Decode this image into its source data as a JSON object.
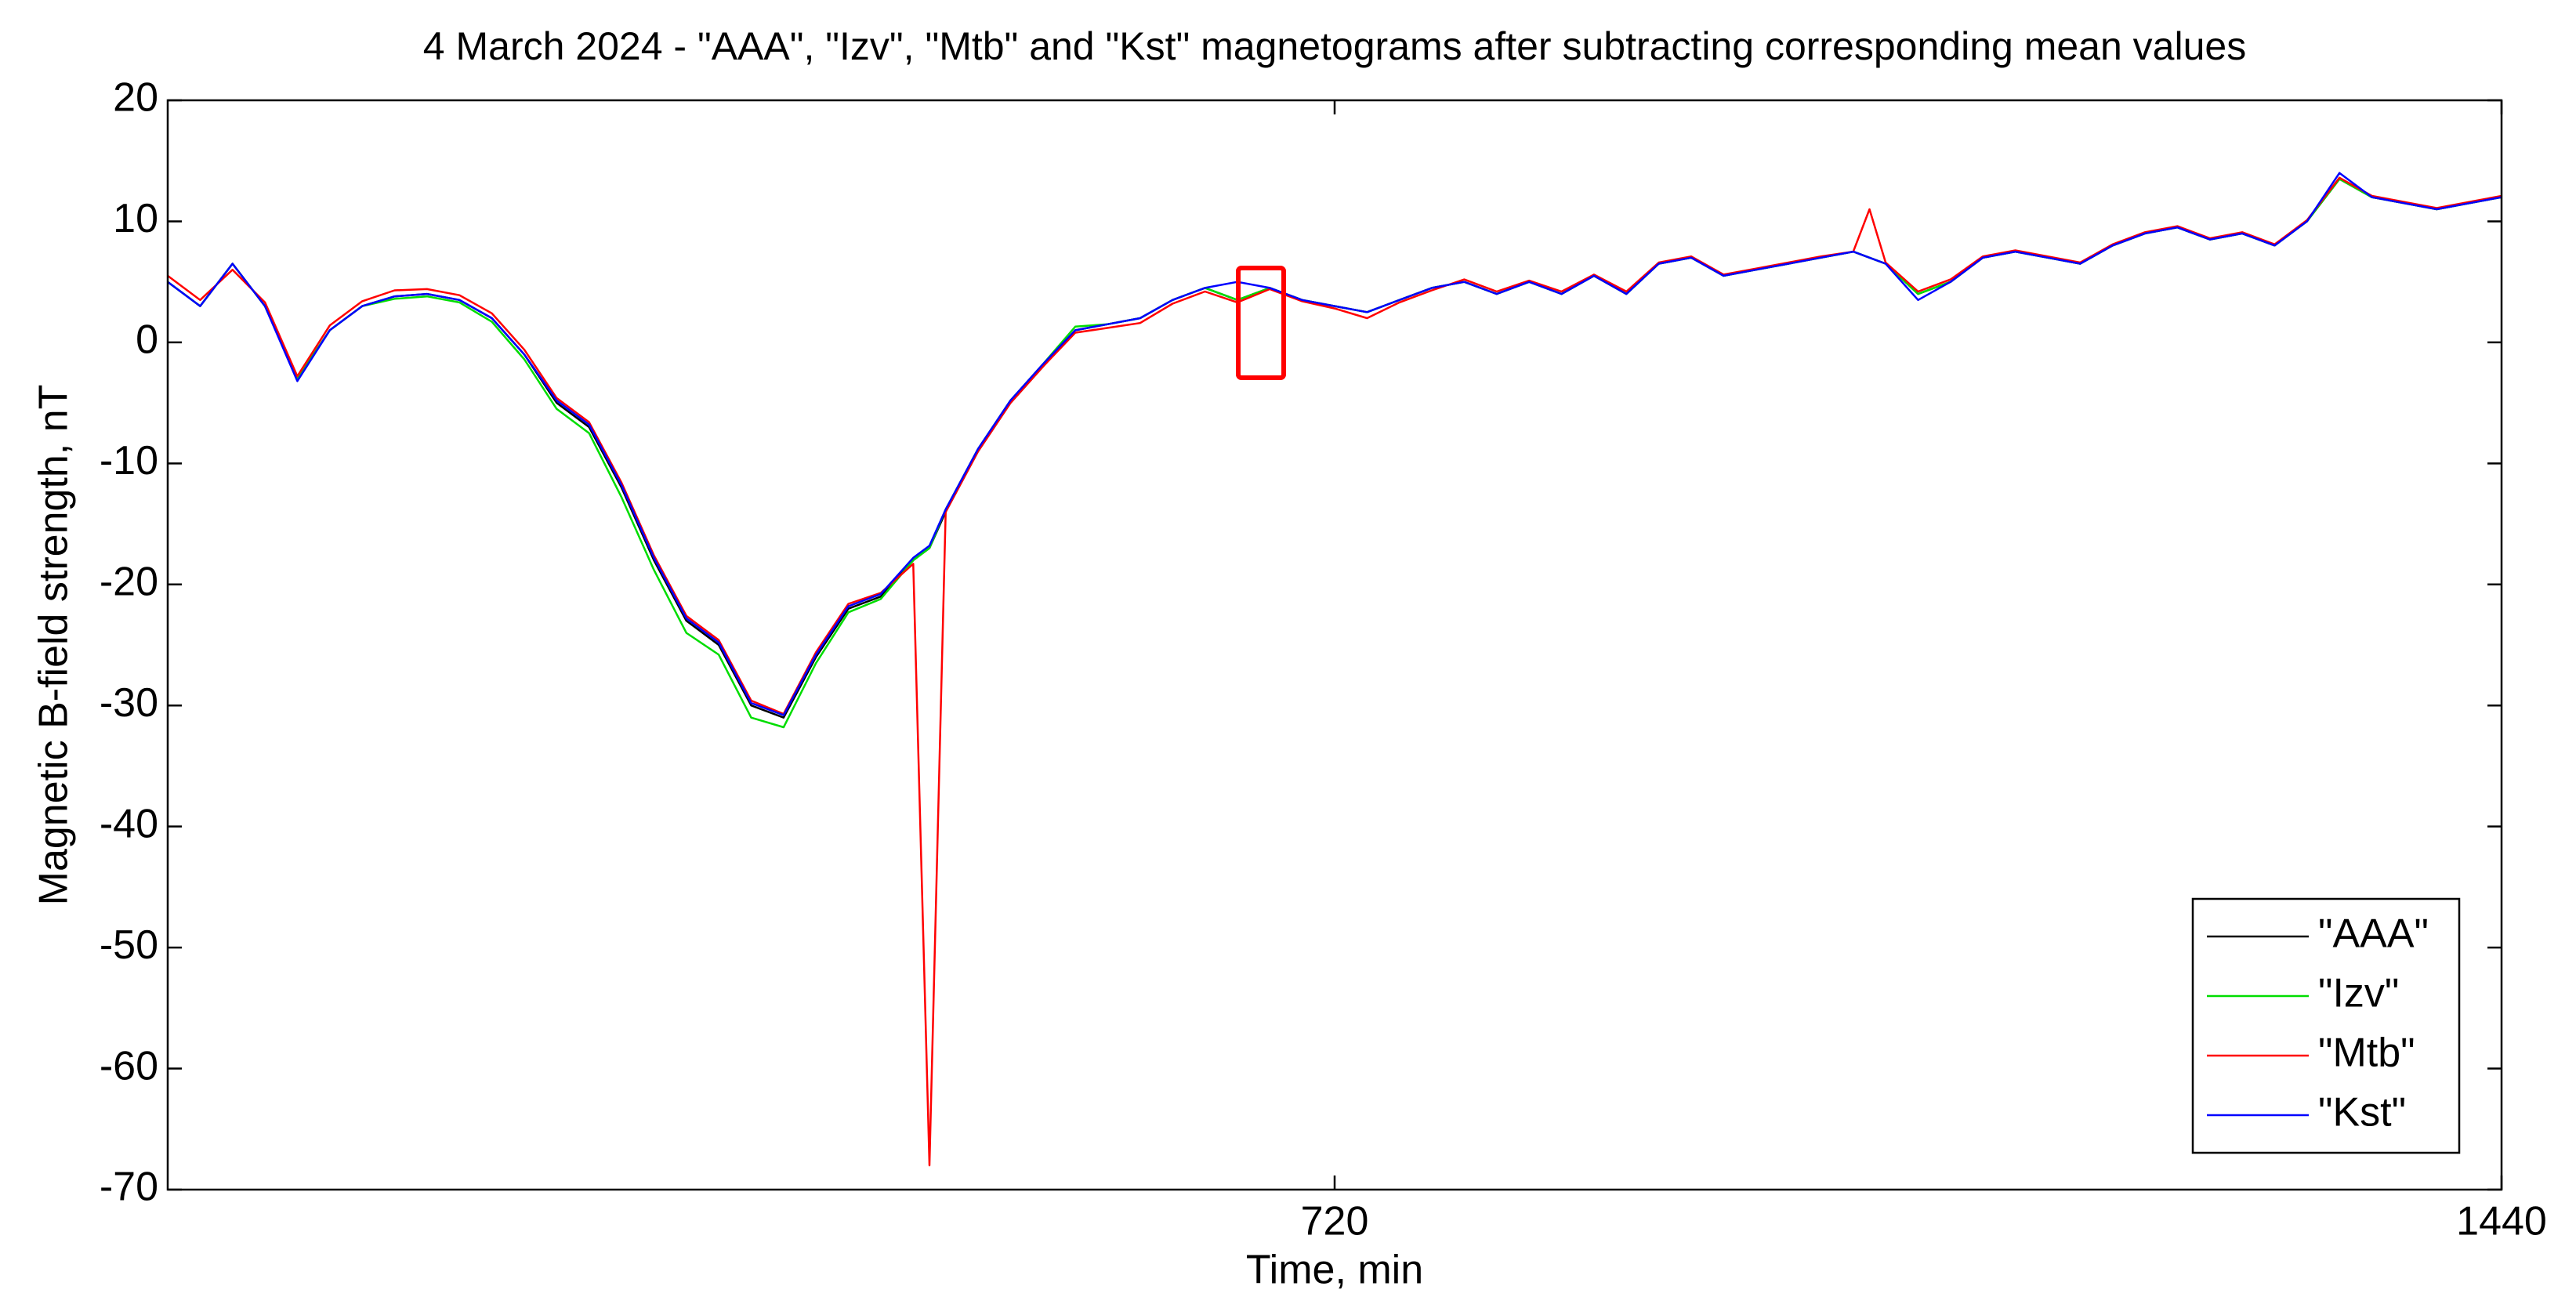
{
  "chart_data": {
    "type": "line",
    "title": "4 March 2024 - \"AAA\", \"Izv\", \"Mtb\" and \"Kst\" magnetograms after subtracting corresponding mean values",
    "x_label": "Time, min",
    "y_label": "Magnetic B-field strength, nT",
    "xlim": [
      0,
      1440
    ],
    "xticks": [
      720,
      1440
    ],
    "ylim": [
      -70,
      20
    ],
    "yticks": [
      -70,
      -60,
      -50,
      -40,
      -30,
      -20,
      -10,
      0,
      10,
      20
    ],
    "legend": "lower right",
    "x": [
      0,
      20,
      40,
      60,
      80,
      100,
      120,
      140,
      160,
      180,
      200,
      220,
      240,
      260,
      280,
      300,
      320,
      340,
      360,
      380,
      400,
      420,
      440,
      460,
      470,
      480,
      500,
      520,
      540,
      560,
      580,
      600,
      620,
      640,
      660,
      680,
      700,
      720,
      740,
      760,
      780,
      800,
      820,
      840,
      860,
      880,
      900,
      920,
      940,
      960,
      980,
      1000,
      1020,
      1040,
      1050,
      1060,
      1080,
      1100,
      1120,
      1140,
      1160,
      1180,
      1200,
      1220,
      1240,
      1260,
      1280,
      1300,
      1320,
      1340,
      1360,
      1380,
      1400,
      1420,
      1440
    ],
    "series": [
      {
        "name": "\"AAA\"",
        "color": "#000000",
        "values": [
          5,
          3,
          6.5,
          3,
          -3,
          1,
          3,
          3.8,
          4,
          3.5,
          2,
          -1,
          -5,
          -7,
          -12,
          -18,
          -23,
          -25,
          -30,
          -31,
          -26,
          -22,
          -21,
          -18,
          -17,
          -14,
          -9,
          -5,
          -2,
          1,
          1.5,
          2,
          3.5,
          4.5,
          3.5,
          4.5,
          3.5,
          3,
          2.5,
          3.5,
          4.5,
          5,
          4,
          5,
          4,
          5.5,
          4,
          6.5,
          7,
          5.5,
          6,
          6.5,
          7,
          7.5,
          7,
          6.5,
          4,
          5,
          7,
          7.5,
          7,
          6.5,
          8,
          9,
          9.5,
          8.5,
          9,
          8,
          10,
          13.5,
          12,
          11.5,
          11,
          11.5,
          12
        ]
      },
      {
        "name": "\"Izv\"",
        "color": "#00dd00",
        "values": [
          5,
          3,
          6.5,
          3,
          -3,
          1,
          3,
          3.6,
          3.8,
          3.3,
          1.7,
          -1.4,
          -5.5,
          -7.5,
          -12.8,
          -18.8,
          -24,
          -25.8,
          -31,
          -31.8,
          -26.5,
          -22.3,
          -21.2,
          -18,
          -17,
          -13.8,
          -8.8,
          -4.8,
          -1.8,
          1.3,
          1.5,
          2,
          3.5,
          4.5,
          3.5,
          4.5,
          3.5,
          3,
          2.5,
          3.5,
          4.5,
          5,
          4,
          5,
          4,
          5.5,
          4,
          6.5,
          7,
          5.5,
          6,
          6.5,
          7,
          7.5,
          7,
          6.5,
          4,
          5,
          7,
          7.5,
          7,
          6.5,
          8,
          9,
          9.5,
          8.5,
          9,
          8,
          10,
          13.5,
          12,
          11.5,
          11,
          11.5,
          12
        ]
      },
      {
        "name": "\"Mtb\"",
        "color": "#ff0000",
        "values": [
          5.5,
          3.5,
          6,
          3.3,
          -2.8,
          1.4,
          3.4,
          4.3,
          4.4,
          3.9,
          2.4,
          -0.6,
          -4.6,
          -6.6,
          -11.6,
          -17.6,
          -22.6,
          -24.6,
          -29.6,
          -30.7,
          -25.6,
          -21.6,
          -20.7,
          -18.3,
          -68,
          -14,
          -9,
          -5,
          -2,
          0.8,
          1.2,
          1.6,
          3.2,
          4.2,
          3.3,
          4.4,
          3.4,
          2.8,
          2,
          3.3,
          4.3,
          5.2,
          4.2,
          5.1,
          4.2,
          5.6,
          4.2,
          6.6,
          7.1,
          5.6,
          6.1,
          6.6,
          7.1,
          7.5,
          11,
          6.6,
          4.2,
          5.2,
          7.1,
          7.6,
          7.1,
          6.6,
          8.1,
          9.1,
          9.6,
          8.6,
          9.1,
          8.1,
          10.1,
          13.6,
          12.1,
          11.6,
          11.1,
          11.6,
          12.1
        ]
      },
      {
        "name": "\"Kst\"",
        "color": "#0000ff",
        "values": [
          5,
          3,
          6.5,
          3,
          -3.2,
          1,
          3,
          3.8,
          4,
          3.5,
          2,
          -1,
          -4.8,
          -6.8,
          -11.8,
          -17.8,
          -22.8,
          -24.8,
          -29.8,
          -30.8,
          -25.8,
          -21.8,
          -20.8,
          -17.8,
          -16.8,
          -13.8,
          -8.8,
          -4.8,
          -1.8,
          1,
          1.5,
          2,
          3.5,
          4.5,
          5,
          4.5,
          3.5,
          3,
          2.5,
          3.5,
          4.5,
          5,
          4,
          5,
          4,
          5.5,
          4,
          6.5,
          7,
          5.5,
          6,
          6.5,
          7,
          7.5,
          7,
          6.5,
          3.5,
          5,
          7,
          7.5,
          7,
          6.5,
          8,
          9,
          9.5,
          8.5,
          9,
          8,
          10,
          14,
          12,
          11.5,
          11,
          11.5,
          12
        ]
      }
    ]
  }
}
